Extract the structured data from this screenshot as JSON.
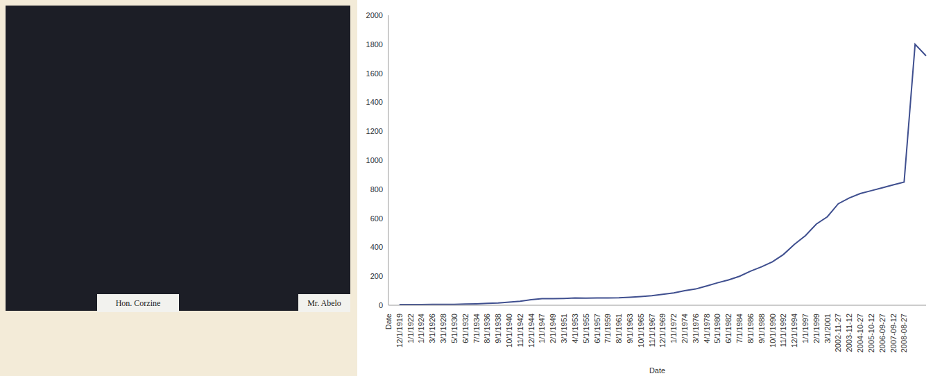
{
  "chart_data": {
    "type": "line",
    "xlabel": "Date",
    "categories": [
      "Date",
      "12/1/1919",
      "1/1/1922",
      "1/1/1924",
      "3/1/1926",
      "3/1/1928",
      "5/1/1930",
      "6/1/1932",
      "7/1/1934",
      "8/1/1936",
      "9/1/1938",
      "10/1/1940",
      "11/1/1942",
      "12/1/1944",
      "1/1/1947",
      "2/1/1949",
      "3/1/1951",
      "4/1/1953",
      "5/1/1955",
      "6/1/1957",
      "7/1/1959",
      "8/1/1961",
      "9/1/1963",
      "10/1/1965",
      "11/1/1967",
      "12/1/1969",
      "1/1/1972",
      "2/1/1974",
      "3/1/1976",
      "4/1/1978",
      "5/1/1980",
      "6/1/1982",
      "7/1/1984",
      "8/1/1986",
      "9/1/1988",
      "10/1/1990",
      "11/1/1992",
      "12/1/1994",
      "1/1/1997",
      "2/1/1999",
      "3/1/2001",
      "2002-11-27",
      "2003-11-12",
      "2004-10-27",
      "2005-10-12",
      "2006-09-27",
      "2007-09-12",
      "2008-08-27",
      null,
      null
    ],
    "values": [
      null,
      5,
      5,
      5,
      6,
      6,
      6,
      8,
      10,
      13,
      15,
      22,
      28,
      38,
      45,
      45,
      47,
      50,
      49,
      50,
      50,
      51,
      55,
      60,
      66,
      75,
      85,
      100,
      112,
      133,
      155,
      175,
      200,
      235,
      265,
      300,
      350,
      420,
      480,
      560,
      610,
      700,
      740,
      770,
      790,
      810,
      830,
      850,
      1800,
      1720
    ],
    "color": "#3f4f8f",
    "ylim": [
      0,
      2000
    ],
    "yticks": [
      0,
      200,
      400,
      600,
      800,
      1000,
      1200,
      1400,
      1600,
      1800,
      2000
    ],
    "grid": false
  },
  "photo": {
    "nameplates": [
      "Hon. Corzine",
      "Mr. Abelo"
    ]
  }
}
